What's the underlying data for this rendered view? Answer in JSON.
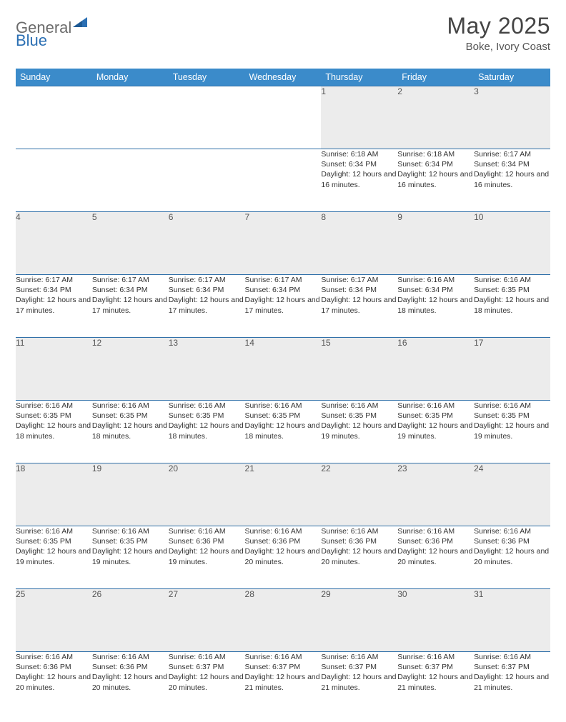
{
  "brand": {
    "part1": "General",
    "part2": "Blue"
  },
  "title": "May 2025",
  "location": "Boke, Ivory Coast",
  "colors": {
    "header_bg": "#3b8bca",
    "header_text": "#ffffff",
    "daynum_bg": "#ececec",
    "row_border": "#2f6fa8",
    "logo_gray": "#6b6b6b",
    "logo_blue": "#2b6fb3"
  },
  "weekdays": [
    "Sunday",
    "Monday",
    "Tuesday",
    "Wednesday",
    "Thursday",
    "Friday",
    "Saturday"
  ],
  "weeks": [
    {
      "days": [
        {
          "n": "",
          "sunrise": "",
          "sunset": "",
          "daylight": ""
        },
        {
          "n": "",
          "sunrise": "",
          "sunset": "",
          "daylight": ""
        },
        {
          "n": "",
          "sunrise": "",
          "sunset": "",
          "daylight": ""
        },
        {
          "n": "",
          "sunrise": "",
          "sunset": "",
          "daylight": ""
        },
        {
          "n": "1",
          "sunrise": "Sunrise: 6:18 AM",
          "sunset": "Sunset: 6:34 PM",
          "daylight": "Daylight: 12 hours and 16 minutes."
        },
        {
          "n": "2",
          "sunrise": "Sunrise: 6:18 AM",
          "sunset": "Sunset: 6:34 PM",
          "daylight": "Daylight: 12 hours and 16 minutes."
        },
        {
          "n": "3",
          "sunrise": "Sunrise: 6:17 AM",
          "sunset": "Sunset: 6:34 PM",
          "daylight": "Daylight: 12 hours and 16 minutes."
        }
      ]
    },
    {
      "days": [
        {
          "n": "4",
          "sunrise": "Sunrise: 6:17 AM",
          "sunset": "Sunset: 6:34 PM",
          "daylight": "Daylight: 12 hours and 17 minutes."
        },
        {
          "n": "5",
          "sunrise": "Sunrise: 6:17 AM",
          "sunset": "Sunset: 6:34 PM",
          "daylight": "Daylight: 12 hours and 17 minutes."
        },
        {
          "n": "6",
          "sunrise": "Sunrise: 6:17 AM",
          "sunset": "Sunset: 6:34 PM",
          "daylight": "Daylight: 12 hours and 17 minutes."
        },
        {
          "n": "7",
          "sunrise": "Sunrise: 6:17 AM",
          "sunset": "Sunset: 6:34 PM",
          "daylight": "Daylight: 12 hours and 17 minutes."
        },
        {
          "n": "8",
          "sunrise": "Sunrise: 6:17 AM",
          "sunset": "Sunset: 6:34 PM",
          "daylight": "Daylight: 12 hours and 17 minutes."
        },
        {
          "n": "9",
          "sunrise": "Sunrise: 6:16 AM",
          "sunset": "Sunset: 6:34 PM",
          "daylight": "Daylight: 12 hours and 18 minutes."
        },
        {
          "n": "10",
          "sunrise": "Sunrise: 6:16 AM",
          "sunset": "Sunset: 6:35 PM",
          "daylight": "Daylight: 12 hours and 18 minutes."
        }
      ]
    },
    {
      "days": [
        {
          "n": "11",
          "sunrise": "Sunrise: 6:16 AM",
          "sunset": "Sunset: 6:35 PM",
          "daylight": "Daylight: 12 hours and 18 minutes."
        },
        {
          "n": "12",
          "sunrise": "Sunrise: 6:16 AM",
          "sunset": "Sunset: 6:35 PM",
          "daylight": "Daylight: 12 hours and 18 minutes."
        },
        {
          "n": "13",
          "sunrise": "Sunrise: 6:16 AM",
          "sunset": "Sunset: 6:35 PM",
          "daylight": "Daylight: 12 hours and 18 minutes."
        },
        {
          "n": "14",
          "sunrise": "Sunrise: 6:16 AM",
          "sunset": "Sunset: 6:35 PM",
          "daylight": "Daylight: 12 hours and 18 minutes."
        },
        {
          "n": "15",
          "sunrise": "Sunrise: 6:16 AM",
          "sunset": "Sunset: 6:35 PM",
          "daylight": "Daylight: 12 hours and 19 minutes."
        },
        {
          "n": "16",
          "sunrise": "Sunrise: 6:16 AM",
          "sunset": "Sunset: 6:35 PM",
          "daylight": "Daylight: 12 hours and 19 minutes."
        },
        {
          "n": "17",
          "sunrise": "Sunrise: 6:16 AM",
          "sunset": "Sunset: 6:35 PM",
          "daylight": "Daylight: 12 hours and 19 minutes."
        }
      ]
    },
    {
      "days": [
        {
          "n": "18",
          "sunrise": "Sunrise: 6:16 AM",
          "sunset": "Sunset: 6:35 PM",
          "daylight": "Daylight: 12 hours and 19 minutes."
        },
        {
          "n": "19",
          "sunrise": "Sunrise: 6:16 AM",
          "sunset": "Sunset: 6:35 PM",
          "daylight": "Daylight: 12 hours and 19 minutes."
        },
        {
          "n": "20",
          "sunrise": "Sunrise: 6:16 AM",
          "sunset": "Sunset: 6:36 PM",
          "daylight": "Daylight: 12 hours and 19 minutes."
        },
        {
          "n": "21",
          "sunrise": "Sunrise: 6:16 AM",
          "sunset": "Sunset: 6:36 PM",
          "daylight": "Daylight: 12 hours and 20 minutes."
        },
        {
          "n": "22",
          "sunrise": "Sunrise: 6:16 AM",
          "sunset": "Sunset: 6:36 PM",
          "daylight": "Daylight: 12 hours and 20 minutes."
        },
        {
          "n": "23",
          "sunrise": "Sunrise: 6:16 AM",
          "sunset": "Sunset: 6:36 PM",
          "daylight": "Daylight: 12 hours and 20 minutes."
        },
        {
          "n": "24",
          "sunrise": "Sunrise: 6:16 AM",
          "sunset": "Sunset: 6:36 PM",
          "daylight": "Daylight: 12 hours and 20 minutes."
        }
      ]
    },
    {
      "days": [
        {
          "n": "25",
          "sunrise": "Sunrise: 6:16 AM",
          "sunset": "Sunset: 6:36 PM",
          "daylight": "Daylight: 12 hours and 20 minutes."
        },
        {
          "n": "26",
          "sunrise": "Sunrise: 6:16 AM",
          "sunset": "Sunset: 6:36 PM",
          "daylight": "Daylight: 12 hours and 20 minutes."
        },
        {
          "n": "27",
          "sunrise": "Sunrise: 6:16 AM",
          "sunset": "Sunset: 6:37 PM",
          "daylight": "Daylight: 12 hours and 20 minutes."
        },
        {
          "n": "28",
          "sunrise": "Sunrise: 6:16 AM",
          "sunset": "Sunset: 6:37 PM",
          "daylight": "Daylight: 12 hours and 21 minutes."
        },
        {
          "n": "29",
          "sunrise": "Sunrise: 6:16 AM",
          "sunset": "Sunset: 6:37 PM",
          "daylight": "Daylight: 12 hours and 21 minutes."
        },
        {
          "n": "30",
          "sunrise": "Sunrise: 6:16 AM",
          "sunset": "Sunset: 6:37 PM",
          "daylight": "Daylight: 12 hours and 21 minutes."
        },
        {
          "n": "31",
          "sunrise": "Sunrise: 6:16 AM",
          "sunset": "Sunset: 6:37 PM",
          "daylight": "Daylight: 12 hours and 21 minutes."
        }
      ]
    }
  ]
}
